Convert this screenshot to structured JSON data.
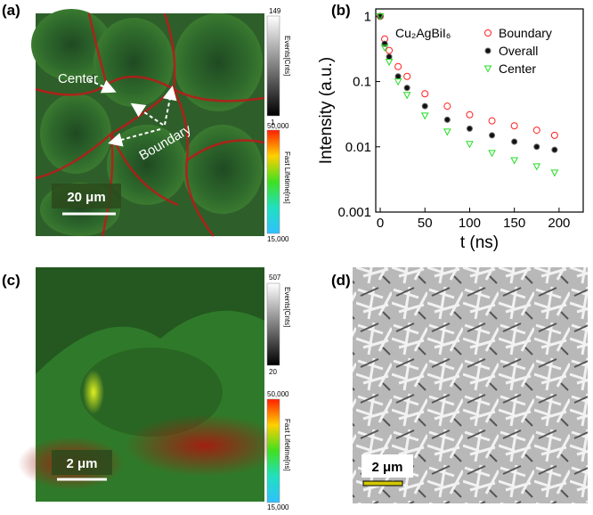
{
  "panels": {
    "a": {
      "label": "(a)",
      "center": "Center",
      "boundary": "Boundary",
      "scale": "20 μm",
      "events_max": "149",
      "events_title": "Events[Cnts]",
      "events_min": "1",
      "lifetime_max": "50,000",
      "lifetime_title": "Fast Lifetime[ns]",
      "lifetime_min": "15,000"
    },
    "b": {
      "label": "(b)"
    },
    "c": {
      "label": "(c)",
      "scale": "2 μm",
      "events_max": "507",
      "events_title": "Events[Cnts]",
      "events_min": "20",
      "lifetime_max": "50,000",
      "lifetime_title": "Fast Lifetime[ns]",
      "lifetime_min": "15,000"
    },
    "d": {
      "label": "(d)",
      "scale": "2 μm"
    }
  },
  "chart_data": {
    "type": "scatter",
    "annotation": "Cu₂AgBiI₆",
    "x_label": "t (ns)",
    "y_label": "Intensity (a.u.)",
    "x": [
      0,
      5,
      10,
      20,
      30,
      50,
      75,
      100,
      125,
      150,
      175,
      195
    ],
    "series": [
      {
        "name": "Boundary",
        "color": "#ff2020",
        "marker": "circle",
        "values": [
          1,
          0.45,
          0.3,
          0.17,
          0.12,
          0.065,
          0.042,
          0.031,
          0.025,
          0.021,
          0.018,
          0.015
        ]
      },
      {
        "name": "Overall",
        "color": "#111111",
        "marker": "dot",
        "values": [
          1,
          0.38,
          0.24,
          0.12,
          0.08,
          0.042,
          0.026,
          0.019,
          0.015,
          0.012,
          0.01,
          0.009
        ]
      },
      {
        "name": "Center",
        "color": "#22dd22",
        "marker": "triangle",
        "values": [
          1,
          0.33,
          0.2,
          0.1,
          0.062,
          0.03,
          0.017,
          0.011,
          0.008,
          0.0062,
          0.005,
          0.004
        ]
      }
    ],
    "xlim": [
      -5,
      227
    ],
    "xticks": [
      0,
      50,
      100,
      150,
      200
    ],
    "ylim": [
      0.001,
      1.3
    ],
    "yticks": [
      0.001,
      0.01,
      0.1,
      1
    ],
    "log_y": true,
    "legend": "upper right"
  }
}
